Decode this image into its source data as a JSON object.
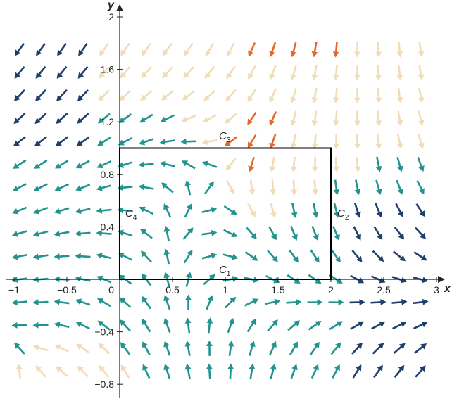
{
  "figure": {
    "x_axis_label": "x",
    "y_axis_label": "y",
    "x_ticks": [
      {
        "value": -1,
        "label": "−1"
      },
      {
        "value": -0.5,
        "label": "−0.5"
      },
      {
        "value": 0,
        "label": "0"
      },
      {
        "value": 0.5,
        "label": "0.5"
      },
      {
        "value": 1,
        "label": "1"
      },
      {
        "value": 1.5,
        "label": "1.5"
      },
      {
        "value": 2,
        "label": "2"
      },
      {
        "value": 2.5,
        "label": "2.5"
      },
      {
        "value": 3,
        "label": "3"
      }
    ],
    "y_ticks": [
      {
        "value": -0.8,
        "label": "−0.8"
      },
      {
        "value": -0.4,
        "label": "−0.4"
      },
      {
        "value": 0.4,
        "label": "0.4"
      },
      {
        "value": 0.8,
        "label": "0.8"
      },
      {
        "value": 1.2,
        "label": "1.2"
      },
      {
        "value": 1.6,
        "label": "1.6"
      },
      {
        "value": 2,
        "label": "2"
      }
    ],
    "x_range": [
      -1,
      3
    ],
    "y_range": [
      -0.8,
      2
    ],
    "rectangle": {
      "x0": 0,
      "y0": 0,
      "x1": 2,
      "y1": 1
    },
    "curve_labels": {
      "c1": {
        "letter": "C",
        "sub": "1"
      },
      "c2": {
        "letter": "C",
        "sub": "2"
      },
      "c3": {
        "letter": "C",
        "sub": "3"
      },
      "c4": {
        "letter": "C",
        "sub": "4"
      }
    },
    "vector_field": {
      "x_min": -0.95,
      "x_max": 2.95,
      "x_step": 0.2,
      "y_min": -0.7,
      "y_max": 1.9,
      "y_step": 0.175,
      "source_point": [
        1.0,
        0.8
      ],
      "sink_point": [
        -0.85,
        -0.65
      ]
    },
    "palette": {
      "navy": "#1f3f6b",
      "teal": "#23938f",
      "orange": "#e06a2b",
      "cream": "#f1dcb7",
      "red": "#c3404f",
      "line": "#000000"
    }
  }
}
